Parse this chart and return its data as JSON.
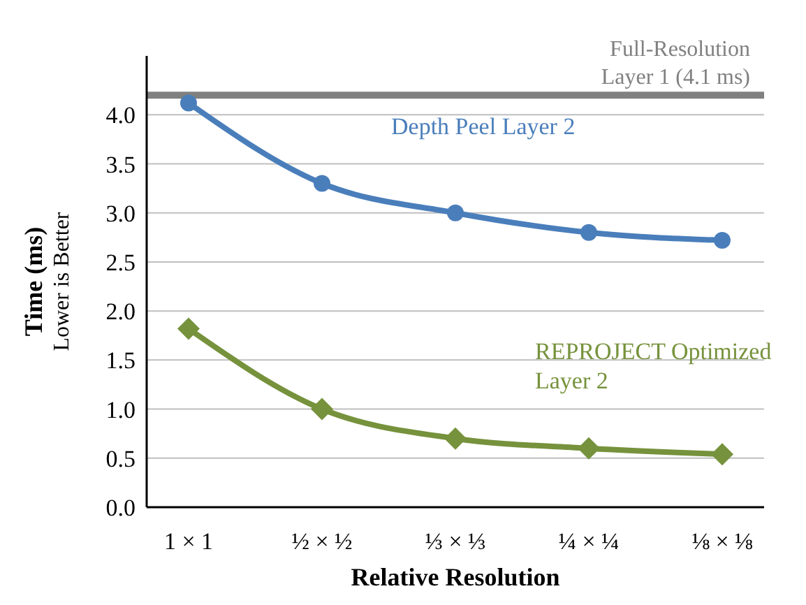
{
  "chart_data": {
    "type": "line",
    "categories": [
      "1 × 1",
      "½ × ½",
      "⅓ × ⅓",
      "¼ × ¼",
      "⅛ × ⅛"
    ],
    "series": [
      {
        "name": "Depth Peel Layer 2",
        "color": "#4a7ebb",
        "marker": "circle",
        "values": [
          4.12,
          3.3,
          3.0,
          2.8,
          2.72
        ]
      },
      {
        "name": "REPROJECT Optimized Layer 2",
        "color": "#76923c",
        "marker": "diamond",
        "values": [
          1.82,
          1.0,
          0.7,
          0.6,
          0.54
        ]
      }
    ],
    "xlabel": "Relative Resolution",
    "ylabel": "Time (ms)\nLower is Better",
    "ylim": [
      0,
      4.6
    ],
    "yticks": [
      {
        "value": 0,
        "label": "0.0"
      },
      0.5,
      {
        "value": 1,
        "label": "1.0"
      },
      1.5,
      {
        "value": 2,
        "label": "2.0"
      },
      2.5,
      {
        "value": 3,
        "label": "3.0"
      },
      3.5,
      {
        "value": 4,
        "label": "4.0"
      }
    ],
    "ref_lines": [
      {
        "axis": "y",
        "value": 4.2,
        "label": "Full-Resolution Layer 1 (4.1 ms)",
        "color": "#808080"
      }
    ],
    "grid": "y",
    "line_style": "solid"
  }
}
